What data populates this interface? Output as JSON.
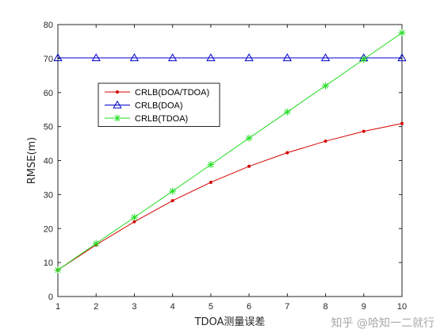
{
  "chart_data": {
    "type": "line",
    "xlabel": "TDOA测量误差",
    "ylabel": "RMSE(m)",
    "xlim": [
      1,
      10
    ],
    "ylim": [
      0,
      80
    ],
    "x_ticks": [
      1,
      2,
      3,
      4,
      5,
      6,
      7,
      8,
      9,
      10
    ],
    "y_ticks": [
      0,
      10,
      20,
      30,
      40,
      50,
      60,
      70,
      80
    ],
    "grid": false,
    "legend_position": "top-left",
    "x": [
      1,
      2,
      3,
      4,
      5,
      6,
      7,
      8,
      9,
      10
    ],
    "series": [
      {
        "name": "CRLB(DOA/TDOA)",
        "color": "#d40000",
        "marker": "dot",
        "values": [
          7.8,
          15.2,
          22.0,
          28.2,
          33.6,
          38.3,
          42.3,
          45.7,
          48.6,
          50.9
        ]
      },
      {
        "name": "CRLB(DOA)",
        "color": "#0000cc",
        "marker": "triangle",
        "values": [
          70.2,
          70.2,
          70.2,
          70.2,
          70.2,
          70.2,
          70.2,
          70.2,
          70.2,
          70.2
        ]
      },
      {
        "name": "CRLB(TDOA)",
        "color": "#22dd22",
        "marker": "star",
        "values": [
          7.8,
          15.6,
          23.3,
          31.0,
          38.8,
          46.6,
          54.3,
          62.0,
          69.8,
          77.6
        ]
      }
    ]
  },
  "watermark": "知乎 @哈知一二就行"
}
